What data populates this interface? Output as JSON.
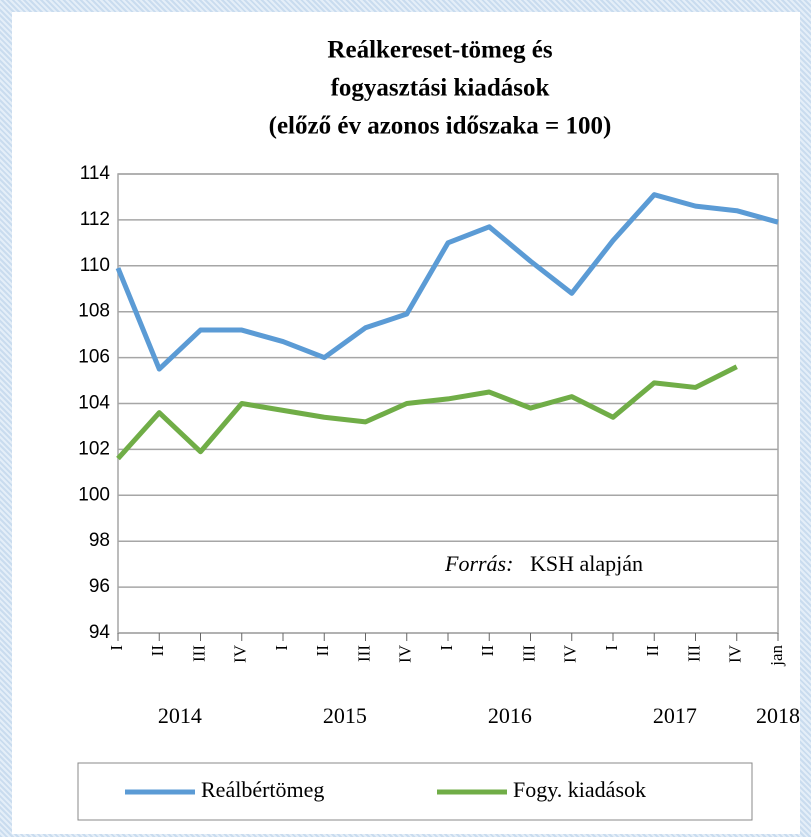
{
  "chart_data": {
    "type": "line",
    "title": [
      "Reálkereset-tömeg és",
      "fogyasztási kiadások",
      "(előző év azonos időszaka = 100)"
    ],
    "categories": [
      "I",
      "II",
      "III",
      "IV",
      "I",
      "II",
      "III",
      "IV",
      "I",
      "II",
      "III",
      "IV",
      "I",
      "II",
      "III",
      "IV",
      "jan"
    ],
    "years": [
      "2014",
      "2015",
      "2016",
      "2017",
      "2018"
    ],
    "series": [
      {
        "name": "Reálbértömeg",
        "color": "#5b9bd5",
        "values": [
          109.9,
          105.5,
          107.2,
          107.2,
          106.7,
          106.0,
          107.3,
          107.9,
          111.0,
          111.7,
          110.2,
          108.8,
          111.1,
          113.1,
          112.6,
          112.4,
          111.9
        ]
      },
      {
        "name": "Fogy. kiadások",
        "color": "#70ad47",
        "values": [
          101.6,
          103.6,
          101.9,
          104.0,
          103.7,
          103.4,
          103.2,
          104.0,
          104.2,
          104.5,
          103.8,
          104.3,
          103.4,
          104.9,
          104.7,
          105.6,
          null
        ]
      }
    ],
    "ylim": [
      94,
      114
    ],
    "yticks": [
      94,
      96,
      98,
      100,
      102,
      104,
      106,
      108,
      110,
      112,
      114
    ],
    "grid": true,
    "source_label": "Forrás:",
    "source": "KSH alapján",
    "legend": "bottom"
  }
}
